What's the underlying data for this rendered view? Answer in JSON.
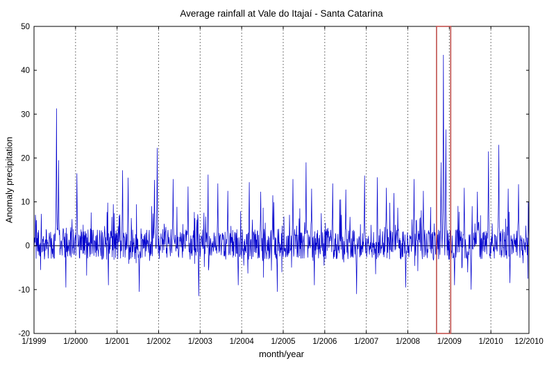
{
  "chart_data": {
    "type": "line",
    "title": "Average rainfall at Vale do Itajaí - Santa Catarina",
    "xlabel": "month/year",
    "ylabel": "Anomaly precipitation",
    "ylim": [
      -20,
      50
    ],
    "yticks": [
      -20,
      -10,
      0,
      10,
      20,
      30,
      40,
      50
    ],
    "x_domain_months": [
      0,
      143
    ],
    "xticks": [
      {
        "pos": 0,
        "label": "1/1999"
      },
      {
        "pos": 12,
        "label": "1/2000"
      },
      {
        "pos": 24,
        "label": "1/2001"
      },
      {
        "pos": 36,
        "label": "1/2002"
      },
      {
        "pos": 48,
        "label": "1/2003"
      },
      {
        "pos": 60,
        "label": "1/2004"
      },
      {
        "pos": 72,
        "label": "1/2005"
      },
      {
        "pos": 84,
        "label": "1/2006"
      },
      {
        "pos": 96,
        "label": "1/2007"
      },
      {
        "pos": 108,
        "label": "1/2008"
      },
      {
        "pos": 120,
        "label": "1/2009"
      },
      {
        "pos": 132,
        "label": "1/2010"
      },
      {
        "pos": 143,
        "label": "12/2010"
      }
    ],
    "grid": {
      "vertical_dotted": true,
      "horizontal": false,
      "color": "#4d4d4d",
      "dash": "1.5 3"
    },
    "zero_line": {
      "y": 0,
      "color": "#000000"
    },
    "axes_color": "#000000",
    "background": "#ffffff",
    "series": [
      {
        "name": "anomaly precipitation",
        "color": "#0000CD",
        "points_per_month": 10,
        "noise_seed": 19990111,
        "baseline_spread": 7,
        "baseline_center": 0.45,
        "burst_prob": 0.13,
        "burst_max": 8,
        "dip_prob": 0.06,
        "dip_max": 5
      }
    ],
    "spikes": [
      [
        6.5,
        31.3
      ],
      [
        7.1,
        19.5
      ],
      [
        12.4,
        16.5
      ],
      [
        25.6,
        17.2
      ],
      [
        27.2,
        15.5
      ],
      [
        34.8,
        15.0
      ],
      [
        35.6,
        22.3
      ],
      [
        40.2,
        15.2
      ],
      [
        44.5,
        13.5
      ],
      [
        50.3,
        16.2
      ],
      [
        53.1,
        14.2
      ],
      [
        56.0,
        12.5
      ],
      [
        62.2,
        14.5
      ],
      [
        65.5,
        12.3
      ],
      [
        69.0,
        11.5
      ],
      [
        74.8,
        15.2
      ],
      [
        78.6,
        19.0
      ],
      [
        80.2,
        13.0
      ],
      [
        86.3,
        14.2
      ],
      [
        90.1,
        12.8
      ],
      [
        95.5,
        16.0
      ],
      [
        99.2,
        15.6
      ],
      [
        101.8,
        13.2
      ],
      [
        104.0,
        12.0
      ],
      [
        109.8,
        15.2
      ],
      [
        112.5,
        12.5
      ],
      [
        117.6,
        19.0
      ],
      [
        118.3,
        43.5
      ],
      [
        119.0,
        26.5
      ],
      [
        124.3,
        13.2
      ],
      [
        128.1,
        12.3
      ],
      [
        131.3,
        21.5
      ],
      [
        134.3,
        23.0
      ],
      [
        137.0,
        13.0
      ],
      [
        140.0,
        14.0
      ],
      [
        142.8,
        10.0
      ]
    ],
    "dips": [
      [
        9.2,
        -9.5
      ],
      [
        21.5,
        -9.0
      ],
      [
        30.4,
        -10.5
      ],
      [
        47.6,
        -11.5
      ],
      [
        59.0,
        -9.0
      ],
      [
        70.3,
        -10.5
      ],
      [
        81.0,
        -9.0
      ],
      [
        93.2,
        -11.0
      ],
      [
        107.4,
        -9.5
      ],
      [
        121.5,
        -9.0
      ],
      [
        126.3,
        -10.0
      ],
      [
        137.5,
        -8.5
      ]
    ],
    "highlight_box": {
      "x_start_month": 116.3,
      "x_end_month": 120.4,
      "y_top": 50,
      "y_bottom": -20,
      "color": "#c0504d"
    }
  }
}
